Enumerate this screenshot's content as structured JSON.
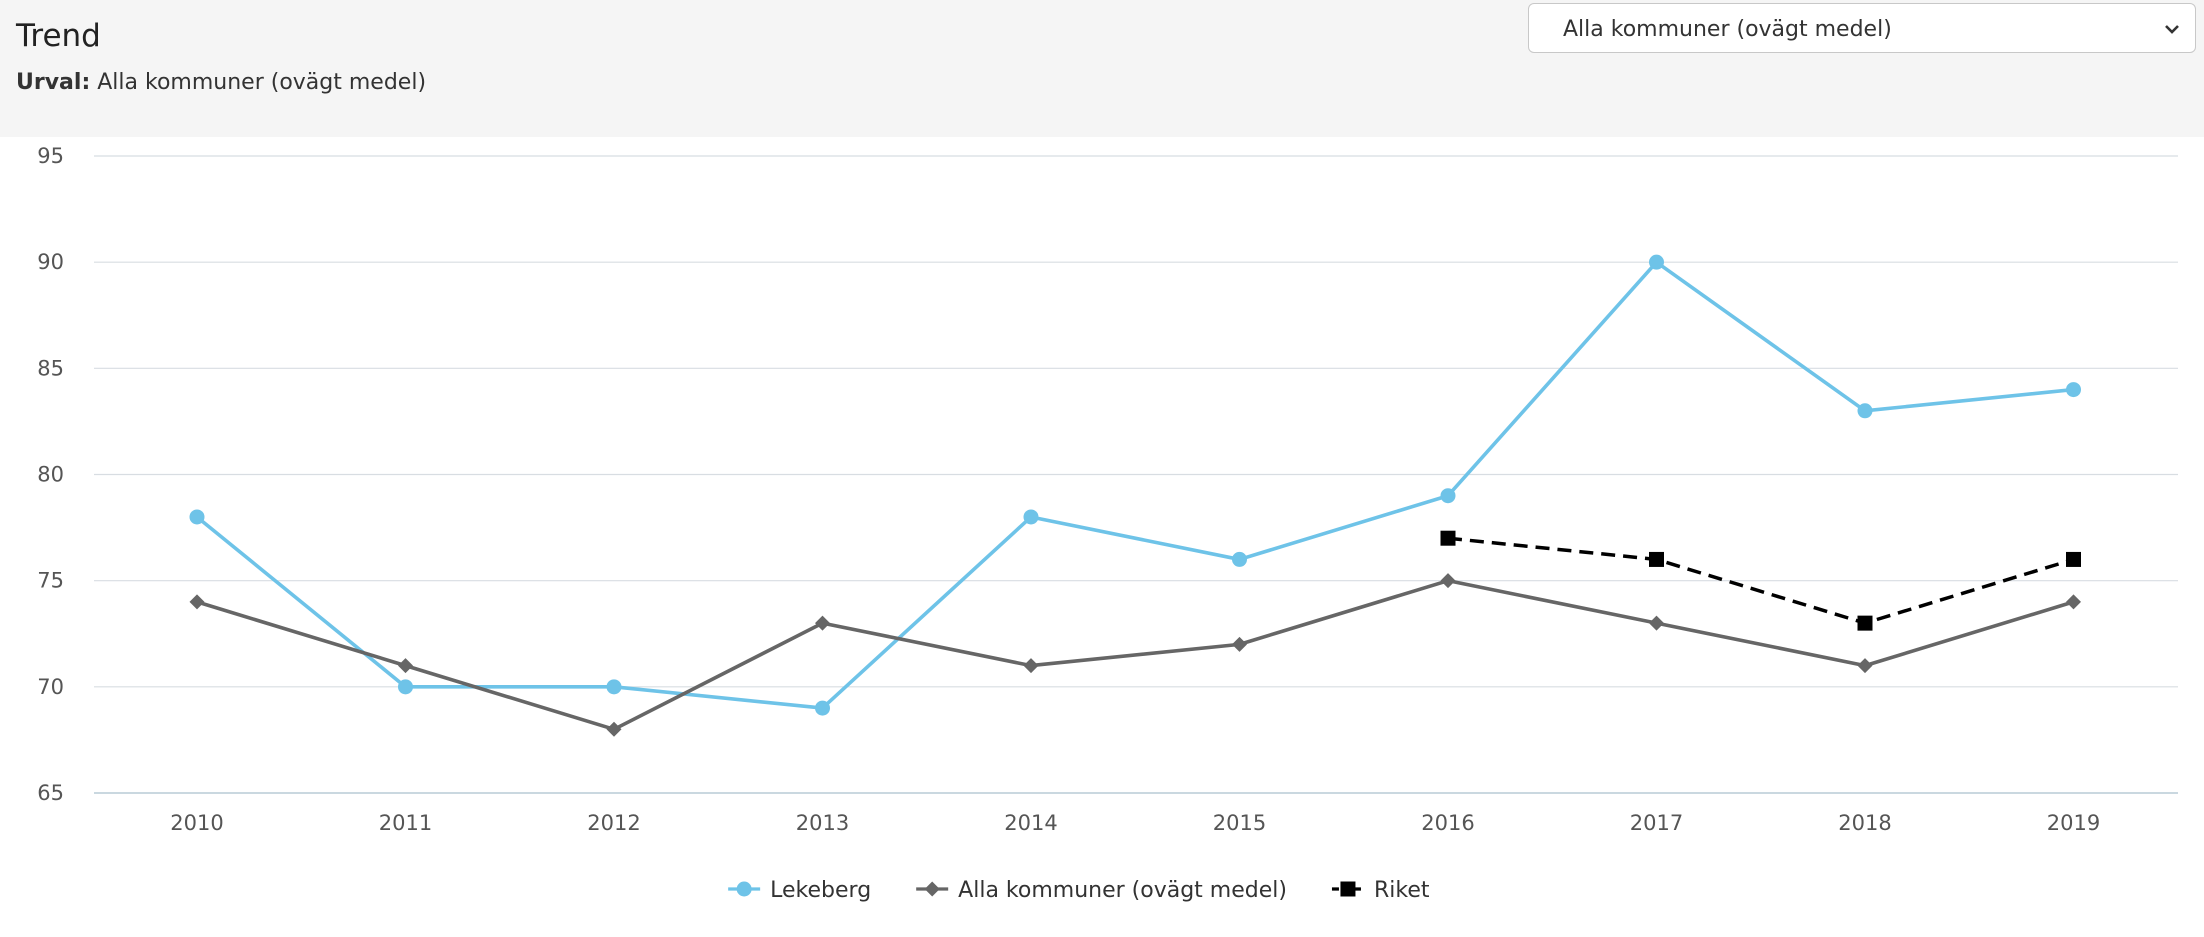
{
  "header": {
    "title": "Trend",
    "subtitle_label": "Urval:",
    "subtitle_value": "Alla kommuner (ovägt medel)",
    "select_value": "Alla kommuner (ovägt medel)"
  },
  "chart_data": {
    "type": "line",
    "x": [
      "2010",
      "2011",
      "2012",
      "2013",
      "2014",
      "2015",
      "2016",
      "2017",
      "2018",
      "2019"
    ],
    "ylim": [
      65,
      95
    ],
    "yticks": [
      65,
      70,
      75,
      80,
      85,
      90,
      95
    ],
    "grid": true,
    "legend_position": "bottom-center",
    "series": [
      {
        "name": "Lekeberg",
        "color": "#6ec3e8",
        "marker": "circle",
        "dash": "solid",
        "values": [
          78,
          70,
          70,
          69,
          78,
          76,
          79,
          90,
          83,
          84
        ]
      },
      {
        "name": "Alla kommuner (ovägt medel)",
        "color": "#666666",
        "marker": "diamond",
        "dash": "solid",
        "values": [
          74,
          71,
          68,
          73,
          71,
          72,
          75,
          73,
          71,
          74
        ]
      },
      {
        "name": "Riket",
        "color": "#000000",
        "marker": "square",
        "dash": "dashed",
        "values": [
          null,
          null,
          null,
          null,
          null,
          null,
          77,
          76,
          73,
          76
        ]
      }
    ]
  }
}
